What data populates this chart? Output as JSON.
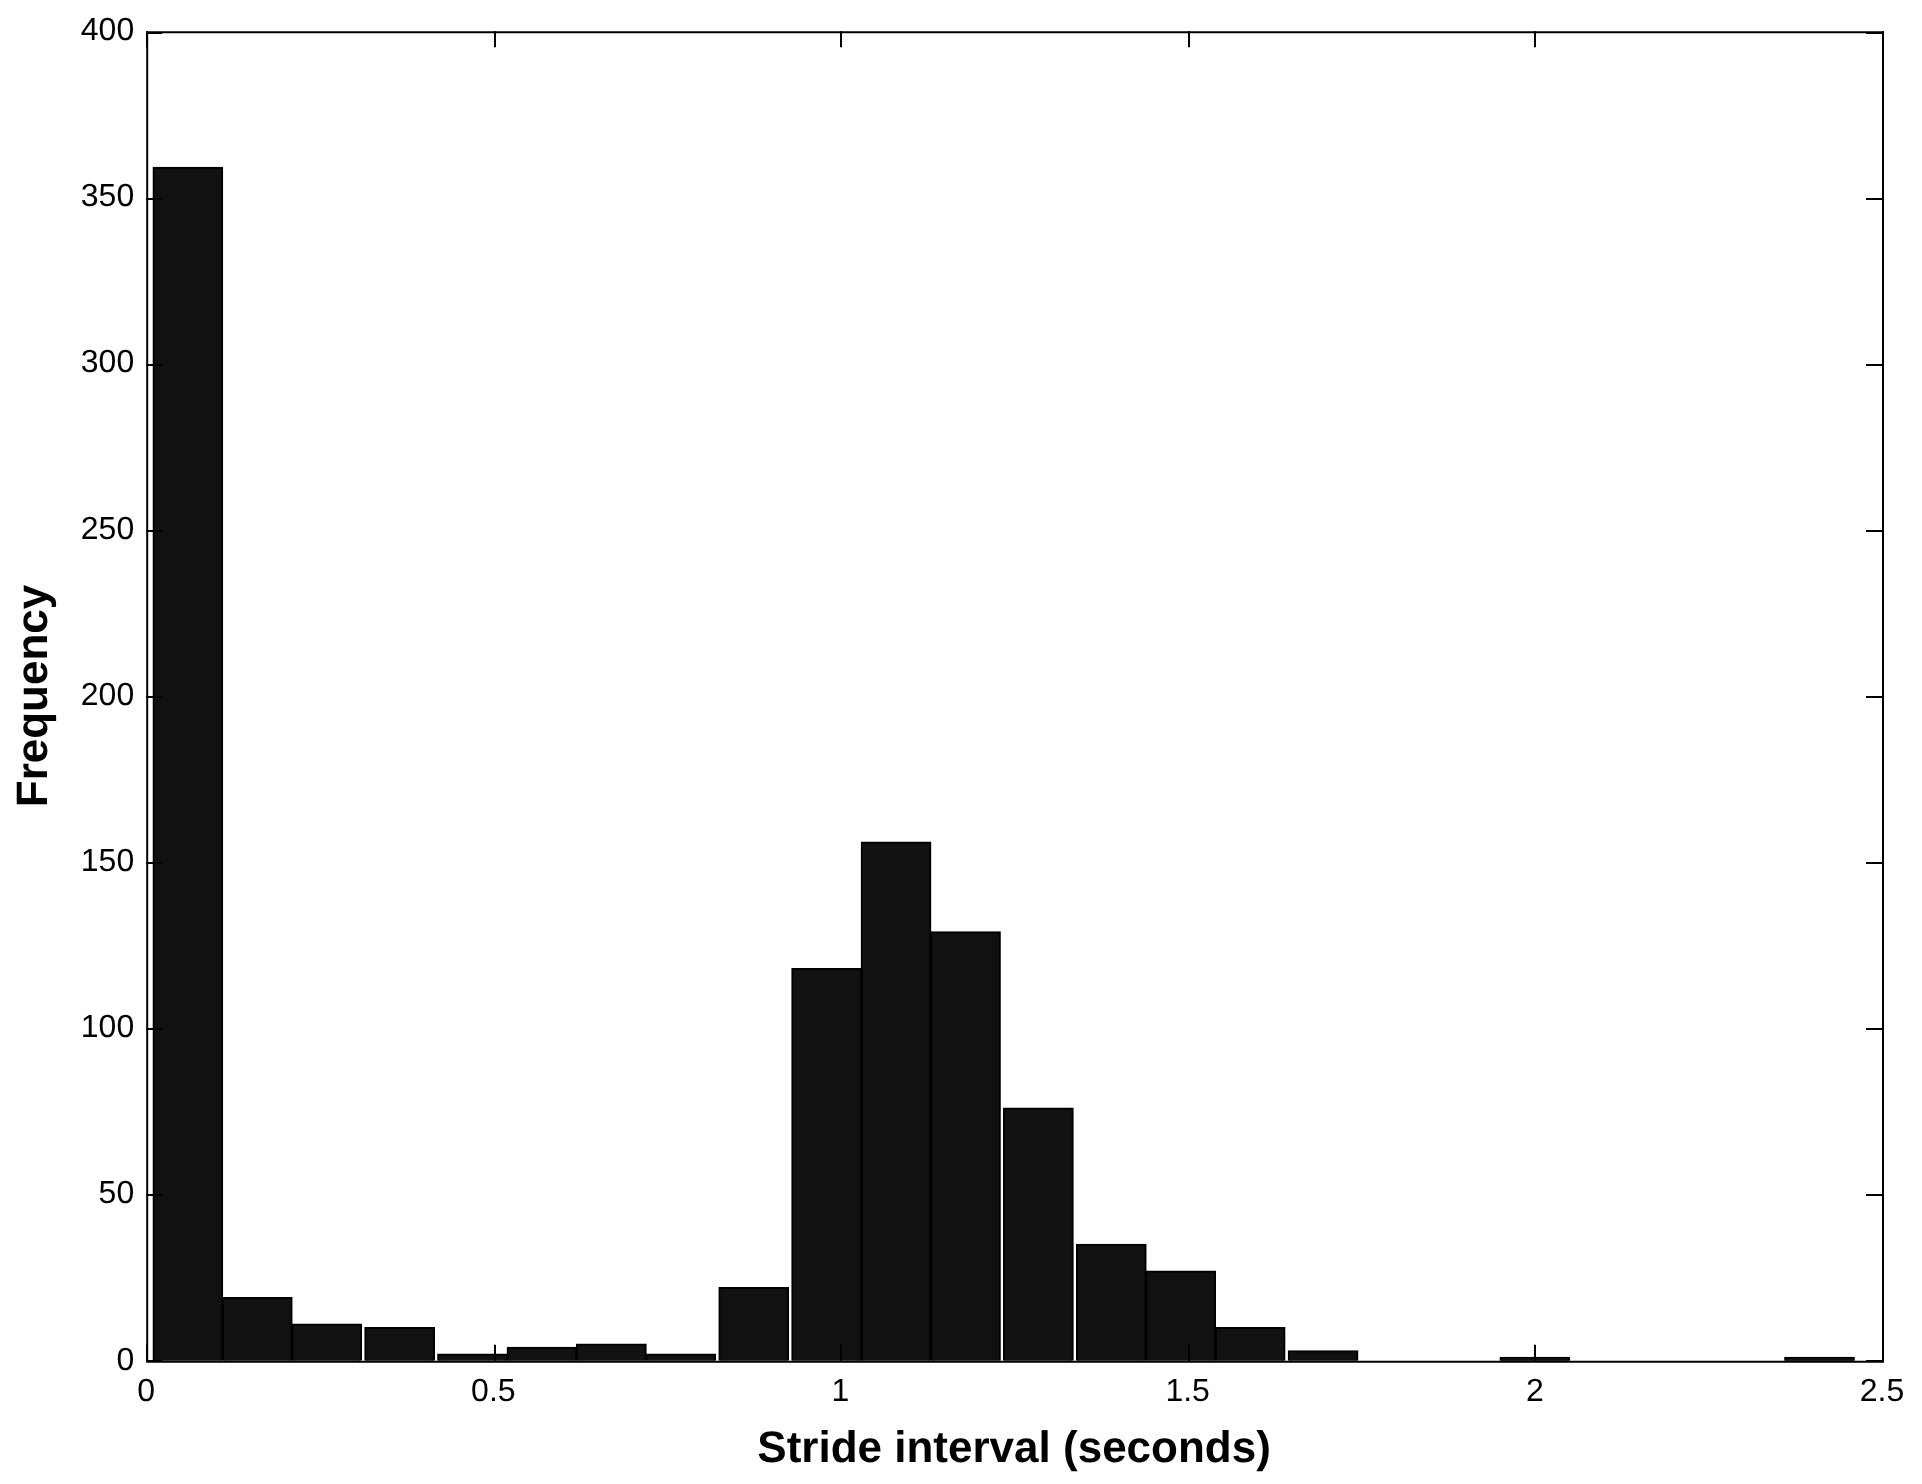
{
  "chart_data": {
    "type": "histogram",
    "xlabel": "Stride interval (seconds)",
    "ylabel": "Frequency",
    "color": "#111111",
    "bins": [
      0.01,
      0.11,
      0.21,
      0.31,
      0.42,
      0.52,
      0.62,
      0.72,
      0.82,
      0.93,
      1.03,
      1.13,
      1.23,
      1.34,
      1.44,
      1.54,
      1.64,
      1.75,
      1.85,
      1.95,
      2.05,
      2.15,
      2.26,
      2.36,
      2.46
    ],
    "values": [
      359,
      19,
      11,
      10,
      2,
      4,
      5,
      2,
      22,
      118,
      156,
      129,
      76,
      35,
      27,
      10,
      3,
      0,
      0,
      1,
      0,
      0,
      0,
      1
    ],
    "xlim": [
      0,
      2.5
    ],
    "xticks": [
      0,
      0.5,
      1,
      1.5,
      2,
      2.5
    ],
    "ylim": [
      0,
      400
    ],
    "yticks": [
      0,
      50,
      100,
      150,
      200,
      250,
      300,
      350,
      400
    ],
    "grid": false,
    "legend": false
  }
}
